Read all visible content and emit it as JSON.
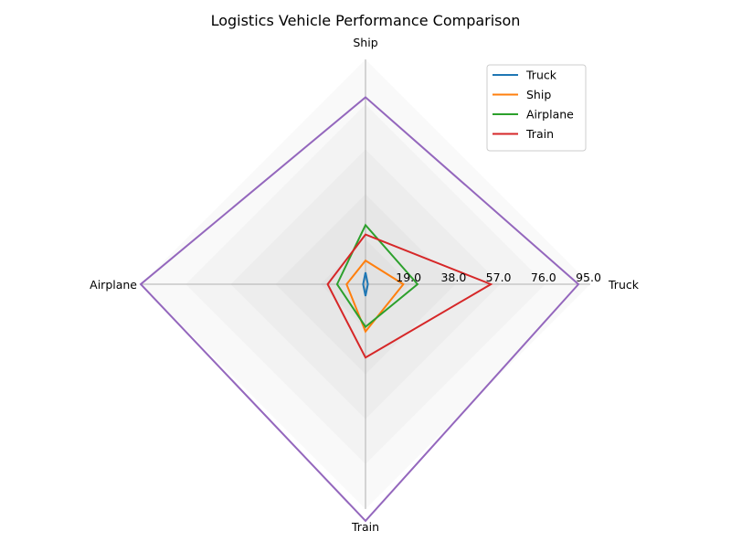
{
  "chart_data": {
    "type": "radar",
    "title": "Logistics Vehicle Performance Comparison",
    "axes": [
      "Truck",
      "Ship",
      "Airplane",
      "Train"
    ],
    "rmax": 95,
    "radial_ticks": [
      19.0,
      38.0,
      57.0,
      76.0,
      95.0
    ],
    "radial_tick_labels": [
      "19.0",
      "38.0",
      "57.0",
      "76.0",
      "95.0"
    ],
    "series": [
      {
        "name": "Truck",
        "color": "#1f77b4",
        "values": [
          1,
          5,
          1,
          5
        ]
      },
      {
        "name": "Ship",
        "color": "#ff7f0e",
        "values": [
          16,
          10,
          8,
          20
        ]
      },
      {
        "name": "Airplane",
        "color": "#2ca02c",
        "values": [
          22,
          25,
          12,
          18
        ]
      },
      {
        "name": "Train",
        "color": "#d62728",
        "values": [
          53,
          21,
          16,
          31
        ]
      },
      {
        "name": "",
        "color": "#9467bd",
        "values": [
          90,
          79,
          95,
          100
        ]
      }
    ],
    "legend_entries": [
      "Truck",
      "Ship",
      "Airplane",
      "Train"
    ],
    "legend_position": "top-right",
    "grid": true
  }
}
